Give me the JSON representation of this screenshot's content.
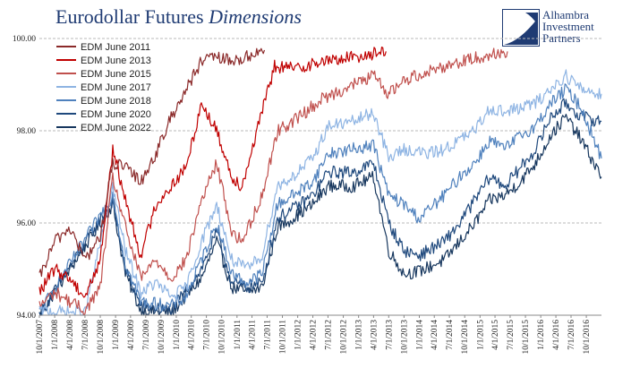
{
  "header": {
    "title_main": "Eurodollar Futures",
    "title_italic": "Dimensions"
  },
  "logo": {
    "line1": "Alhambra",
    "line2": "Investment",
    "line3": "Partners",
    "color": "#1f3b73"
  },
  "chart_data": {
    "type": "line",
    "title": "Eurodollar Futures Dimensions",
    "xlabel": "",
    "ylabel": "",
    "ylim": [
      94.0,
      100.0
    ],
    "xlim": [
      "2007-10-01",
      "2016-12-31"
    ],
    "y_ticks": [
      "94.00",
      "96.00",
      "98.00",
      "100.00"
    ],
    "x_ticks": [
      "10/1/2007",
      "1/1/2008",
      "4/1/2008",
      "7/1/2008",
      "10/1/2008",
      "1/1/2009",
      "4/1/2009",
      "7/1/2009",
      "10/1/2009",
      "1/1/2010",
      "4/1/2010",
      "7/1/2010",
      "10/1/2010",
      "1/1/2011",
      "4/1/2011",
      "7/1/2011",
      "10/1/2011",
      "1/1/2012",
      "4/1/2012",
      "7/1/2012",
      "10/1/2012",
      "1/1/2013",
      "4/1/2013",
      "7/1/2013",
      "10/1/2013",
      "1/1/2014",
      "4/1/2014",
      "7/1/2014",
      "10/1/2014",
      "1/1/2015",
      "4/1/2015",
      "7/1/2015",
      "10/1/2015",
      "1/1/2016",
      "4/1/2016",
      "7/1/2016",
      "10/1/2016"
    ],
    "grid": "horizontal dashed",
    "legend_position": "top-left",
    "series": [
      {
        "name": "EDM June 2011",
        "color": "#8b2a2a",
        "points": [
          [
            "2007-10-01",
            94.8
          ],
          [
            "2008-01-01",
            95.6
          ],
          [
            "2008-04-01",
            95.9
          ],
          [
            "2008-07-01",
            95.2
          ],
          [
            "2008-10-01",
            95.7
          ],
          [
            "2008-12-15",
            97.3
          ],
          [
            "2009-03-01",
            97.2
          ],
          [
            "2009-06-01",
            96.9
          ],
          [
            "2009-09-01",
            97.5
          ],
          [
            "2009-12-01",
            98.3
          ],
          [
            "2010-03-01",
            98.9
          ],
          [
            "2010-06-01",
            99.5
          ],
          [
            "2010-09-01",
            99.6
          ],
          [
            "2010-12-01",
            99.5
          ],
          [
            "2011-03-01",
            99.6
          ],
          [
            "2011-06-15",
            99.75
          ]
        ]
      },
      {
        "name": "EDM June 2013",
        "color": "#c00000",
        "points": [
          [
            "2007-10-01",
            94.5
          ],
          [
            "2008-01-01",
            95.0
          ],
          [
            "2008-04-01",
            94.8
          ],
          [
            "2008-07-01",
            94.4
          ],
          [
            "2008-10-01",
            95.2
          ],
          [
            "2008-12-15",
            97.6
          ],
          [
            "2009-03-01",
            96.5
          ],
          [
            "2009-06-01",
            95.3
          ],
          [
            "2009-09-01",
            96.4
          ],
          [
            "2009-12-01",
            96.8
          ],
          [
            "2010-03-01",
            97.2
          ],
          [
            "2010-06-01",
            98.6
          ],
          [
            "2010-09-01",
            98.0
          ],
          [
            "2010-12-01",
            97.0
          ],
          [
            "2011-02-01",
            96.8
          ],
          [
            "2011-05-01",
            98.0
          ],
          [
            "2011-08-15",
            99.4
          ],
          [
            "2011-12-01",
            99.35
          ],
          [
            "2012-06-01",
            99.5
          ],
          [
            "2012-12-01",
            99.6
          ],
          [
            "2013-06-15",
            99.72
          ]
        ]
      },
      {
        "name": "EDM June 2015",
        "color": "#c0504d",
        "points": [
          [
            "2007-10-01",
            94.2
          ],
          [
            "2008-01-01",
            94.5
          ],
          [
            "2008-07-01",
            94.1
          ],
          [
            "2008-10-01",
            94.6
          ],
          [
            "2008-12-15",
            97.0
          ],
          [
            "2009-03-01",
            95.9
          ],
          [
            "2009-06-01",
            94.8
          ],
          [
            "2009-09-01",
            95.2
          ],
          [
            "2009-12-01",
            94.8
          ],
          [
            "2010-03-01",
            95.2
          ],
          [
            "2010-06-01",
            96.5
          ],
          [
            "2010-09-01",
            97.3
          ],
          [
            "2010-12-01",
            95.8
          ],
          [
            "2011-02-01",
            95.6
          ],
          [
            "2011-06-01",
            96.6
          ],
          [
            "2011-09-01",
            98.0
          ],
          [
            "2011-12-01",
            98.2
          ],
          [
            "2012-06-01",
            98.7
          ],
          [
            "2012-12-01",
            99.0
          ],
          [
            "2013-04-01",
            99.2
          ],
          [
            "2013-07-01",
            98.8
          ],
          [
            "2013-10-01",
            99.1
          ],
          [
            "2014-03-01",
            99.3
          ],
          [
            "2014-09-01",
            99.5
          ],
          [
            "2015-01-01",
            99.6
          ],
          [
            "2015-06-15",
            99.72
          ]
        ]
      },
      {
        "name": "EDM June 2017",
        "color": "#8eb4e3",
        "points": [
          [
            "2007-10-01",
            94.1
          ],
          [
            "2008-07-01",
            94.05
          ],
          [
            "2008-12-15",
            96.8
          ],
          [
            "2009-03-01",
            95.4
          ],
          [
            "2009-06-01",
            94.5
          ],
          [
            "2009-09-01",
            94.7
          ],
          [
            "2009-12-01",
            94.4
          ],
          [
            "2010-03-01",
            94.6
          ],
          [
            "2010-06-01",
            95.6
          ],
          [
            "2010-09-01",
            96.4
          ],
          [
            "2010-12-01",
            95.2
          ],
          [
            "2011-03-01",
            95.0
          ],
          [
            "2011-06-01",
            95.3
          ],
          [
            "2011-09-01",
            96.8
          ],
          [
            "2011-12-01",
            97.0
          ],
          [
            "2012-04-01",
            97.4
          ],
          [
            "2012-07-01",
            98.1
          ],
          [
            "2012-12-01",
            98.2
          ],
          [
            "2013-04-01",
            98.4
          ],
          [
            "2013-07-01",
            97.4
          ],
          [
            "2013-10-01",
            97.6
          ],
          [
            "2014-03-01",
            97.5
          ],
          [
            "2014-06-01",
            97.6
          ],
          [
            "2014-09-01",
            97.8
          ],
          [
            "2014-12-01",
            98.0
          ],
          [
            "2015-03-01",
            98.5
          ],
          [
            "2015-06-01",
            98.4
          ],
          [
            "2015-09-01",
            98.5
          ],
          [
            "2015-12-01",
            98.6
          ],
          [
            "2016-03-01",
            98.9
          ],
          [
            "2016-06-01",
            99.2
          ],
          [
            "2016-09-01",
            98.9
          ],
          [
            "2016-12-31",
            98.8
          ]
        ]
      },
      {
        "name": "EDM June 2018",
        "color": "#4f81bd",
        "points": [
          [
            "2007-10-01",
            94.05
          ],
          [
            "2008-12-15",
            96.6
          ],
          [
            "2009-03-01",
            95.1
          ],
          [
            "2009-06-01",
            94.3
          ],
          [
            "2009-12-01",
            94.2
          ],
          [
            "2010-03-01",
            94.4
          ],
          [
            "2010-06-01",
            95.2
          ],
          [
            "2010-09-01",
            96.0
          ],
          [
            "2010-12-01",
            94.9
          ],
          [
            "2011-03-01",
            94.7
          ],
          [
            "2011-06-01",
            94.9
          ],
          [
            "2011-09-01",
            96.4
          ],
          [
            "2011-12-01",
            96.6
          ],
          [
            "2012-04-01",
            96.9
          ],
          [
            "2012-07-01",
            97.5
          ],
          [
            "2012-12-01",
            97.6
          ],
          [
            "2013-04-01",
            97.7
          ],
          [
            "2013-07-01",
            96.6
          ],
          [
            "2013-10-01",
            96.4
          ],
          [
            "2014-01-01",
            96.1
          ],
          [
            "2014-06-01",
            96.6
          ],
          [
            "2014-09-01",
            97.0
          ],
          [
            "2014-12-01",
            97.3
          ],
          [
            "2015-03-01",
            97.8
          ],
          [
            "2015-06-01",
            97.6
          ],
          [
            "2015-09-01",
            97.9
          ],
          [
            "2015-12-01",
            98.1
          ],
          [
            "2016-03-01",
            98.6
          ],
          [
            "2016-06-01",
            98.9
          ],
          [
            "2016-09-01",
            98.5
          ],
          [
            "2016-12-31",
            97.4
          ]
        ]
      },
      {
        "name": "EDM June 2020",
        "color": "#1f497d",
        "points": [
          [
            "2007-10-01",
            94.0
          ],
          [
            "2008-12-15",
            96.5
          ],
          [
            "2009-03-01",
            95.0
          ],
          [
            "2009-06-01",
            94.2
          ],
          [
            "2009-12-01",
            94.1
          ],
          [
            "2010-06-01",
            95.0
          ],
          [
            "2010-09-01",
            95.8
          ],
          [
            "2010-12-01",
            94.7
          ],
          [
            "2011-03-01",
            94.6
          ],
          [
            "2011-06-01",
            94.7
          ],
          [
            "2011-09-01",
            96.1
          ],
          [
            "2011-12-01",
            96.3
          ],
          [
            "2012-04-01",
            96.6
          ],
          [
            "2012-07-01",
            97.1
          ],
          [
            "2012-12-01",
            97.1
          ],
          [
            "2013-04-01",
            97.3
          ],
          [
            "2013-07-01",
            96.0
          ],
          [
            "2013-10-01",
            95.4
          ],
          [
            "2014-01-01",
            95.3
          ],
          [
            "2014-06-01",
            95.6
          ],
          [
            "2014-09-01",
            96.0
          ],
          [
            "2014-12-01",
            96.5
          ],
          [
            "2015-03-01",
            97.0
          ],
          [
            "2015-06-01",
            96.8
          ],
          [
            "2015-09-01",
            97.2
          ],
          [
            "2015-12-01",
            97.6
          ],
          [
            "2016-03-01",
            98.3
          ],
          [
            "2016-06-01",
            98.6
          ],
          [
            "2016-09-01",
            98.3
          ],
          [
            "2016-12-31",
            98.2
          ]
        ]
      },
      {
        "name": "EDM June 2022",
        "color": "#17375e",
        "points": [
          [
            "2007-10-01",
            94.0
          ],
          [
            "2008-12-15",
            96.4
          ],
          [
            "2009-03-01",
            94.9
          ],
          [
            "2009-06-01",
            94.1
          ],
          [
            "2009-12-01",
            94.05
          ],
          [
            "2010-06-01",
            94.8
          ],
          [
            "2010-09-01",
            95.6
          ],
          [
            "2010-12-01",
            94.6
          ],
          [
            "2011-03-01",
            94.5
          ],
          [
            "2011-06-01",
            94.6
          ],
          [
            "2011-09-01",
            95.9
          ],
          [
            "2011-12-01",
            96.1
          ],
          [
            "2012-04-01",
            96.4
          ],
          [
            "2012-07-01",
            96.8
          ],
          [
            "2012-12-01",
            96.8
          ],
          [
            "2013-04-01",
            97.0
          ],
          [
            "2013-07-01",
            95.4
          ],
          [
            "2013-10-01",
            94.9
          ],
          [
            "2014-01-01",
            94.95
          ],
          [
            "2014-06-01",
            95.2
          ],
          [
            "2014-09-01",
            95.6
          ],
          [
            "2014-12-01",
            96.0
          ],
          [
            "2015-03-01",
            96.5
          ],
          [
            "2015-06-01",
            96.6
          ],
          [
            "2015-09-01",
            96.9
          ],
          [
            "2015-12-01",
            97.3
          ],
          [
            "2016-03-01",
            97.9
          ],
          [
            "2016-06-01",
            98.3
          ],
          [
            "2016-09-01",
            97.8
          ],
          [
            "2016-12-31",
            97.0
          ]
        ]
      }
    ]
  }
}
